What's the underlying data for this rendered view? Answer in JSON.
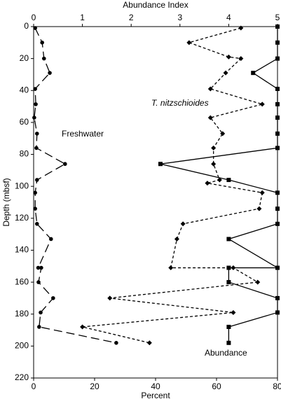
{
  "chart_data": {
    "type": "line",
    "x_label": "Percent",
    "x2_label": "Abundance Index",
    "y_label": "Depth (mbsf)",
    "xlim": [
      0,
      80
    ],
    "xticks": [
      0,
      20,
      40,
      60,
      80
    ],
    "x2lim": [
      0,
      5
    ],
    "x2ticks": [
      0,
      1,
      2,
      3,
      4,
      5
    ],
    "ylim": [
      0,
      220
    ],
    "yticks": [
      0,
      20,
      40,
      60,
      80,
      100,
      120,
      140,
      160,
      180,
      200,
      220
    ],
    "y_inverted": true,
    "series": [
      {
        "name": "Freshwater",
        "color": "#000000",
        "marker": "circle",
        "line_style": "long-dash",
        "depth": [
          0.9,
          10,
          20,
          29,
          39,
          48.6,
          57,
          67,
          76,
          86,
          96,
          104,
          114,
          123.5,
          133,
          151,
          151,
          160,
          170,
          179,
          188,
          198
        ],
        "values": [
          0.5,
          2.8,
          3.4,
          5.3,
          0.5,
          0.7,
          0.2,
          1.1,
          0.9,
          10.3,
          1.1,
          0.5,
          0.5,
          1.1,
          5.7,
          1.5,
          2.5,
          1.6,
          6.4,
          2.3,
          1.8,
          27.1
        ]
      },
      {
        "name": "T. nitzschioides",
        "color": "#000000",
        "marker": "diamond",
        "line_style": "short-dash",
        "depth": [
          0.9,
          10,
          19,
          20,
          29,
          39,
          48.6,
          57,
          67,
          76,
          86,
          96,
          98,
          104,
          114,
          123.5,
          133,
          151,
          151,
          160,
          170,
          179,
          188,
          198
        ],
        "values": [
          68,
          51,
          64,
          68,
          63,
          58,
          75,
          58,
          62,
          59,
          59,
          61,
          57,
          75,
          74,
          49,
          47,
          45,
          65.5,
          73.5,
          25,
          65.5,
          16,
          38
        ]
      },
      {
        "name": "Abundance",
        "color": "#000000",
        "marker": "square",
        "line_style": "solid",
        "axis": "x2",
        "depth": [
          0,
          10,
          20,
          29,
          39,
          48.6,
          57,
          67,
          76,
          86,
          96,
          104,
          114,
          123.5,
          133,
          151,
          151,
          160,
          170,
          179,
          188,
          198
        ],
        "values": [
          5,
          5,
          5,
          4.5,
          5,
          5,
          5,
          5,
          5,
          2.6,
          4,
          5,
          5,
          5,
          4,
          5,
          4,
          4,
          5,
          5,
          4,
          4
        ]
      }
    ]
  }
}
